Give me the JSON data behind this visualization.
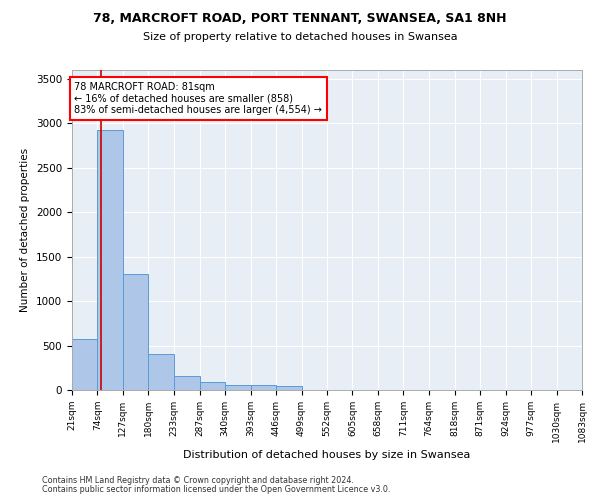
{
  "title1": "78, MARCROFT ROAD, PORT TENNANT, SWANSEA, SA1 8NH",
  "title2": "Size of property relative to detached houses in Swansea",
  "xlabel": "Distribution of detached houses by size in Swansea",
  "ylabel": "Number of detached properties",
  "footnote1": "Contains HM Land Registry data © Crown copyright and database right 2024.",
  "footnote2": "Contains public sector information licensed under the Open Government Licence v3.0.",
  "bar_color": "#aec6e8",
  "bar_edge_color": "#5b9bd5",
  "background_color": "#e8eef5",
  "grid_color": "#ffffff",
  "annotation_line1": "78 MARCROFT ROAD: 81sqm",
  "annotation_line2": "← 16% of detached houses are smaller (858)",
  "annotation_line3": "83% of semi-detached houses are larger (4,554) →",
  "property_size": 81,
  "red_line_color": "#cc0000",
  "bins": [
    21,
    74,
    127,
    180,
    233,
    287,
    340,
    393,
    446,
    499,
    552,
    605,
    658,
    711,
    764,
    818,
    871,
    924,
    977,
    1030,
    1083
  ],
  "bin_labels": [
    "21sqm",
    "74sqm",
    "127sqm",
    "180sqm",
    "233sqm",
    "287sqm",
    "340sqm",
    "393sqm",
    "446sqm",
    "499sqm",
    "552sqm",
    "605sqm",
    "658sqm",
    "711sqm",
    "764sqm",
    "818sqm",
    "871sqm",
    "924sqm",
    "977sqm",
    "1030sqm",
    "1083sqm"
  ],
  "counts": [
    570,
    2920,
    1310,
    410,
    155,
    90,
    60,
    55,
    45,
    0,
    0,
    0,
    0,
    0,
    0,
    0,
    0,
    0,
    0,
    0
  ],
  "ylim": [
    0,
    3600
  ],
  "yticks": [
    0,
    500,
    1000,
    1500,
    2000,
    2500,
    3000,
    3500
  ]
}
